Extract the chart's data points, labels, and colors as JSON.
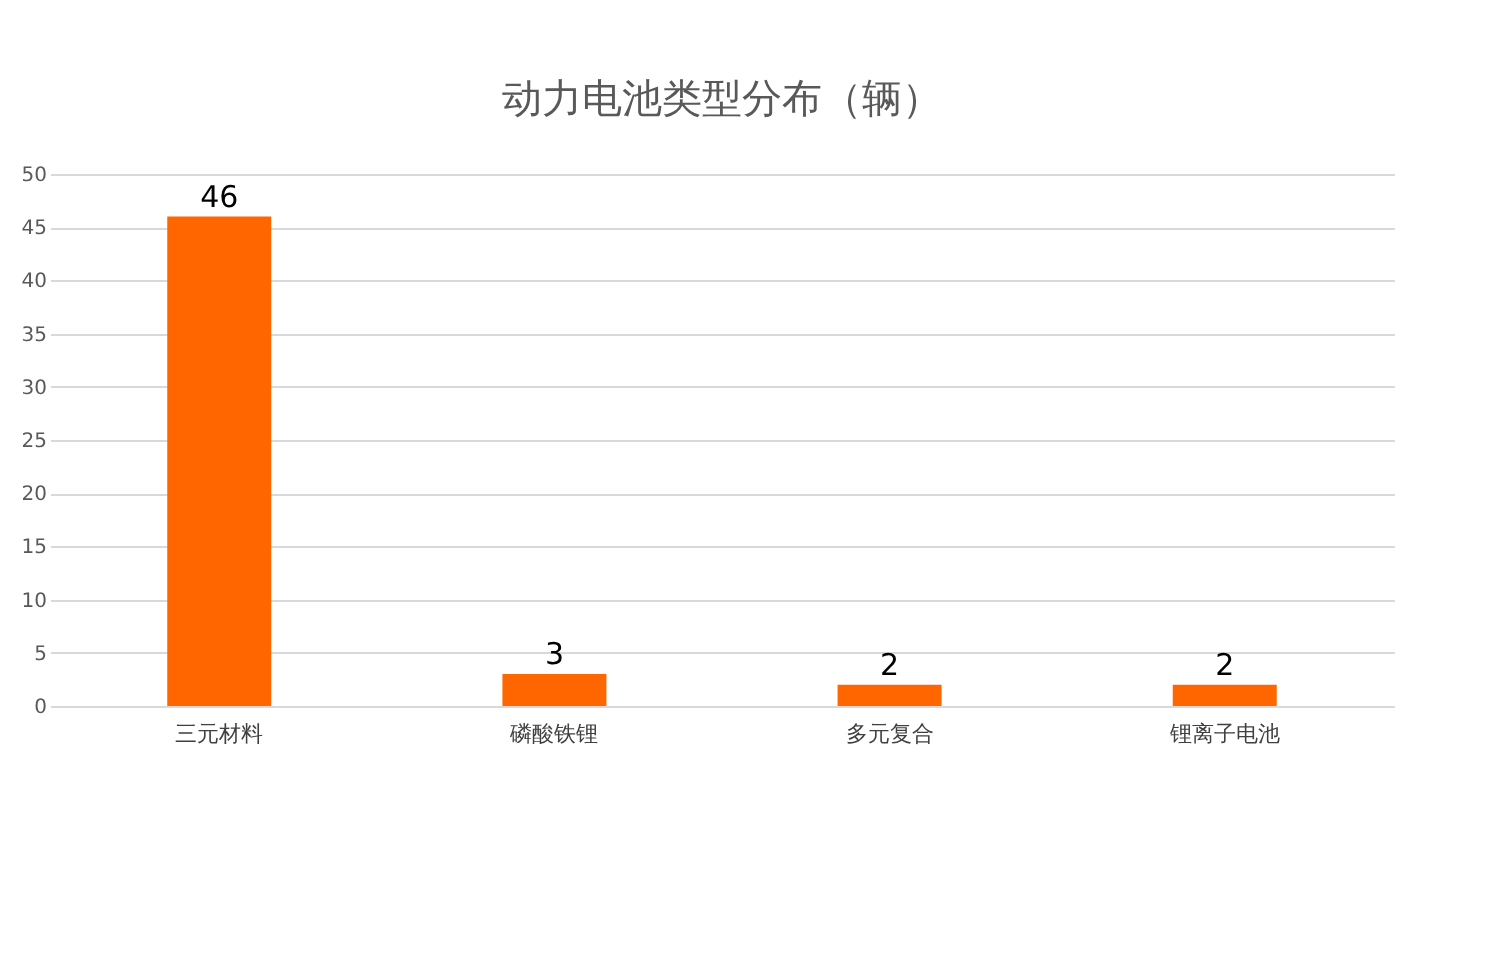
{
  "chart_data": {
    "type": "bar",
    "title": "动力电池类型分布（辆）",
    "categories": [
      "三元材料",
      "磷酸铁锂",
      "多元复合",
      "锂离子电池"
    ],
    "values": [
      46,
      3,
      2,
      2
    ],
    "color": "#ff6600",
    "ylim": [
      0,
      50
    ],
    "yticks": [
      0,
      5,
      10,
      15,
      20,
      25,
      30,
      35,
      40,
      45,
      50
    ],
    "grid": "y",
    "data_labels": true
  }
}
